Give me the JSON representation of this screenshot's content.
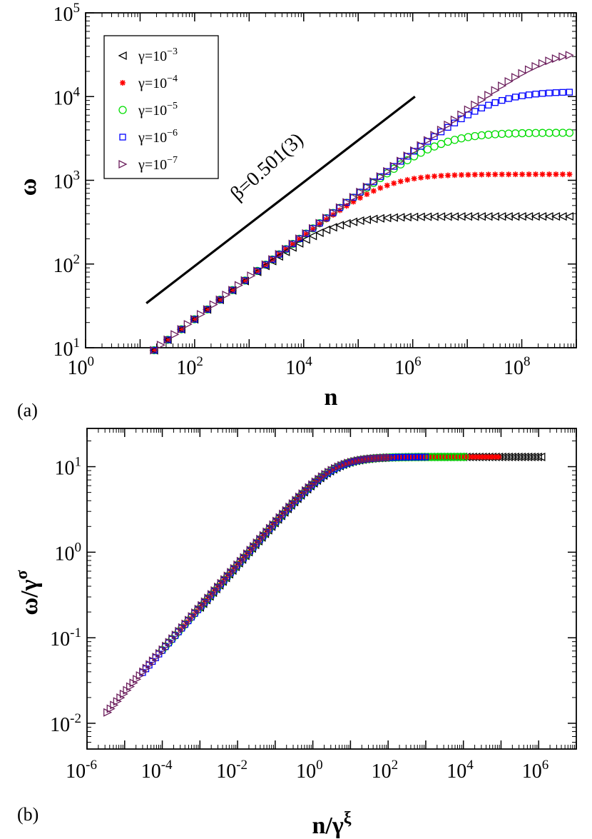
{
  "colors": {
    "g3": "#000000",
    "g4": "#ff0000",
    "g5": "#00dd00",
    "g6": "#0000ff",
    "g7": "#6b1e5c",
    "axis": "#000000"
  },
  "chart_data": [
    {
      "panel": "(a)",
      "type": "scatter",
      "xscale": "log",
      "yscale": "log",
      "xlim": [
        1,
        1000000000
      ],
      "ylim": [
        10,
        100000
      ],
      "xticks": [
        {
          "base": "10",
          "exp": "0"
        },
        {
          "base": "10",
          "exp": "2"
        },
        {
          "base": "10",
          "exp": "4"
        },
        {
          "base": "10",
          "exp": "6"
        },
        {
          "base": "10",
          "exp": "8"
        }
      ],
      "yticks": [
        {
          "base": "10",
          "exp": "1"
        },
        {
          "base": "10",
          "exp": "2"
        },
        {
          "base": "10",
          "exp": "3"
        },
        {
          "base": "10",
          "exp": "4"
        },
        {
          "base": "10",
          "exp": "5"
        }
      ],
      "xlabel": "n",
      "ylabel": "ω",
      "legend_position": "top-left",
      "annotation": "β=0.501(3)",
      "fit_line": {
        "slope": 0.501,
        "x_start": 13,
        "x_end": 1100000,
        "y_start": 34
      },
      "series": [
        {
          "name": "γ=10",
          "sup": "−3",
          "marker": "triangle-left",
          "color_key": "g3",
          "plateau": 370,
          "crossover": 3000
        },
        {
          "name": "γ=10",
          "sup": "−4",
          "marker": "star",
          "color_key": "g4",
          "plateau": 1180,
          "crossover": 30000
        },
        {
          "name": "γ=10",
          "sup": "−5",
          "marker": "circle",
          "color_key": "g5",
          "plateau": 3700,
          "crossover": 300000
        },
        {
          "name": "γ=10",
          "sup": "−6",
          "marker": "square",
          "color_key": "g6",
          "plateau": 11500,
          "crossover": 3000000
        },
        {
          "name": "γ=10",
          "sup": "−7",
          "marker": "triangle-right",
          "color_key": "g7",
          "plateau": 36500,
          "crossover": 30000000
        }
      ]
    },
    {
      "panel": "(b)",
      "type": "scatter",
      "xscale": "log",
      "yscale": "log",
      "xlim": [
        1e-06,
        10000000
      ],
      "ylim": [
        0.005,
        28
      ],
      "xticks": [
        {
          "base": "10",
          "exp": "-6"
        },
        {
          "base": "10",
          "exp": "-4"
        },
        {
          "base": "10",
          "exp": "-2"
        },
        {
          "base": "10",
          "exp": "0"
        },
        {
          "base": "10",
          "exp": "2"
        },
        {
          "base": "10",
          "exp": "4"
        },
        {
          "base": "10",
          "exp": "6"
        }
      ],
      "yticks": [
        {
          "base": "10",
          "exp": "-2"
        },
        {
          "base": "10",
          "exp": "-1"
        },
        {
          "base": "10",
          "exp": "0"
        },
        {
          "base": "10",
          "exp": "1"
        }
      ],
      "xlabel": "n/γ",
      "xlabel_sup": "ξ",
      "ylabel": "ω/γ",
      "ylabel_sup": "σ",
      "collapse": {
        "plateau": 13,
        "crossover": 3.3,
        "slope": 0.5
      },
      "series_x_ranges": [
        {
          "color_key": "g3",
          "marker": "triangle-left",
          "x_min": 0.001,
          "x_max": 1300000
        },
        {
          "color_key": "g4",
          "marker": "star",
          "x_min": 0.0003,
          "x_max": 100000
        },
        {
          "color_key": "g5",
          "marker": "circle",
          "x_min": 0.0001,
          "x_max": 13000
        },
        {
          "color_key": "g6",
          "marker": "square",
          "x_min": 3e-05,
          "x_max": 1000
        },
        {
          "color_key": "g7",
          "marker": "triangle-right",
          "x_min": 3.5e-06,
          "x_max": 130
        }
      ]
    }
  ],
  "labels": {
    "panel_a": "(a)",
    "panel_b": "(b)"
  }
}
